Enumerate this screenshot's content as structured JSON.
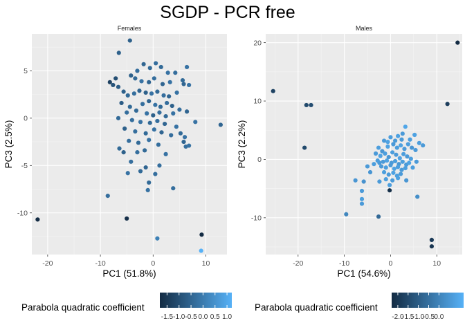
{
  "title": "SGDP - PCR free",
  "colors": {
    "panel_bg": "#ebebeb",
    "grid_major": "#ffffff",
    "grid_minor": "#f5f5f5",
    "low": "#132b43",
    "high": "#56b1f7"
  },
  "chart_data": [
    {
      "type": "scatter",
      "facet": "Females",
      "xlabel": "PC1 (51.8%)",
      "ylabel": "PC3 (2.5%)",
      "xlim": [
        -23,
        14
      ],
      "ylim": [
        -14.4,
        8.9
      ],
      "x_ticks": [
        -20,
        -10,
        0,
        10
      ],
      "y_ticks": [
        -10,
        -5,
        0,
        5
      ],
      "x_tick_labels": [
        "-20",
        "-10",
        "0",
        "10"
      ],
      "y_tick_labels": [
        "-10",
        "-5",
        "0",
        "5"
      ],
      "grid": true,
      "legend": {
        "title": "Parabola quadratic coefficient",
        "position": "bottom",
        "range": [
          -1.8,
          1.2
        ],
        "breaks": [
          -1.5,
          -1.0,
          -0.5,
          0.0,
          0.5,
          1.0
        ],
        "break_labels": [
          "-1.5",
          "-1.0",
          "-0.5",
          "0.0",
          "0.5",
          "1.0"
        ]
      },
      "points": [
        {
          "x": -21.9,
          "y": -10.7,
          "c": -1.8
        },
        {
          "x": -5.0,
          "y": -10.6,
          "c": -1.7
        },
        {
          "x": 9.2,
          "y": -12.3,
          "c": -1.8
        },
        {
          "x": 9.1,
          "y": -14.0,
          "c": 1.2
        },
        {
          "x": 0.8,
          "y": -12.7,
          "c": 0.1
        },
        {
          "x": -8.6,
          "y": -8.2,
          "c": -0.3
        },
        {
          "x": -4.4,
          "y": 8.2,
          "c": -0.6
        },
        {
          "x": -6.5,
          "y": 6.9,
          "c": -0.6
        },
        {
          "x": -7.1,
          "y": 4.2,
          "c": -1.0
        },
        {
          "x": -8.2,
          "y": 3.8,
          "c": -1.3
        },
        {
          "x": -7.6,
          "y": 3.5,
          "c": -0.9
        },
        {
          "x": -6.6,
          "y": 3.3,
          "c": -0.7
        },
        {
          "x": -4.2,
          "y": 4.5,
          "c": -0.6
        },
        {
          "x": -3.0,
          "y": 5.0,
          "c": -0.3
        },
        {
          "x": -1.8,
          "y": 5.7,
          "c": -0.5
        },
        {
          "x": -0.6,
          "y": 5.3,
          "c": -0.4
        },
        {
          "x": 0.5,
          "y": 5.8,
          "c": -0.3
        },
        {
          "x": 1.5,
          "y": 5.4,
          "c": -0.4
        },
        {
          "x": 2.8,
          "y": 4.8,
          "c": -0.2
        },
        {
          "x": 4.2,
          "y": 4.8,
          "c": -0.3
        },
        {
          "x": 5.6,
          "y": 4.0,
          "c": -0.4
        },
        {
          "x": 6.4,
          "y": 5.4,
          "c": -0.2
        },
        {
          "x": 5.8,
          "y": 3.6,
          "c": -0.5
        },
        {
          "x": 6.8,
          "y": 3.5,
          "c": -0.2
        },
        {
          "x": -3.4,
          "y": 4.2,
          "c": -0.4
        },
        {
          "x": -2.2,
          "y": 3.9,
          "c": -0.2
        },
        {
          "x": -0.8,
          "y": 3.8,
          "c": -0.5
        },
        {
          "x": 0.2,
          "y": 4.2,
          "c": -0.3
        },
        {
          "x": 1.8,
          "y": 3.6,
          "c": -0.5
        },
        {
          "x": 3.2,
          "y": 3.8,
          "c": -0.2
        },
        {
          "x": -5.6,
          "y": 2.8,
          "c": -0.6
        },
        {
          "x": -4.8,
          "y": 2.4,
          "c": -0.4
        },
        {
          "x": -3.6,
          "y": 2.6,
          "c": -0.3
        },
        {
          "x": -2.6,
          "y": 2.9,
          "c": -0.5
        },
        {
          "x": -1.4,
          "y": 2.7,
          "c": -0.6
        },
        {
          "x": -0.3,
          "y": 2.6,
          "c": -0.2
        },
        {
          "x": 0.8,
          "y": 2.8,
          "c": -0.4
        },
        {
          "x": 2.0,
          "y": 2.4,
          "c": -0.3
        },
        {
          "x": 3.0,
          "y": 2.3,
          "c": -0.5
        },
        {
          "x": 4.5,
          "y": 2.7,
          "c": -0.2
        },
        {
          "x": -6.0,
          "y": 1.6,
          "c": -0.7
        },
        {
          "x": -4.4,
          "y": 1.2,
          "c": -0.4
        },
        {
          "x": -2.0,
          "y": 1.5,
          "c": -0.3
        },
        {
          "x": -0.8,
          "y": 1.8,
          "c": -0.5
        },
        {
          "x": 0.4,
          "y": 1.4,
          "c": -0.2
        },
        {
          "x": 1.4,
          "y": 1.2,
          "c": -0.4
        },
        {
          "x": 2.6,
          "y": 1.6,
          "c": -0.3
        },
        {
          "x": 3.6,
          "y": 1.3,
          "c": -0.6
        },
        {
          "x": -5.0,
          "y": 0.6,
          "c": -0.3
        },
        {
          "x": -3.2,
          "y": 0.8,
          "c": -0.4
        },
        {
          "x": -1.2,
          "y": 0.5,
          "c": -0.2
        },
        {
          "x": 0.0,
          "y": 0.3,
          "c": -0.6
        },
        {
          "x": 1.2,
          "y": 0.6,
          "c": -0.3
        },
        {
          "x": 2.4,
          "y": 0.2,
          "c": -0.4
        },
        {
          "x": 3.8,
          "y": 0.5,
          "c": -0.2
        },
        {
          "x": 5.0,
          "y": 0.9,
          "c": -0.3
        },
        {
          "x": 6.4,
          "y": 0.7,
          "c": -0.5
        },
        {
          "x": 8.0,
          "y": -0.4,
          "c": -0.2
        },
        {
          "x": 12.8,
          "y": -0.7,
          "c": -0.5
        },
        {
          "x": -6.6,
          "y": 0.0,
          "c": -0.4
        },
        {
          "x": -4.0,
          "y": -0.2,
          "c": -0.3
        },
        {
          "x": -2.4,
          "y": -0.4,
          "c": -0.2
        },
        {
          "x": -0.6,
          "y": -0.5,
          "c": -0.4
        },
        {
          "x": 0.8,
          "y": -0.3,
          "c": -0.3
        },
        {
          "x": 2.2,
          "y": -0.6,
          "c": -0.5
        },
        {
          "x": 4.4,
          "y": -0.9,
          "c": -0.2
        },
        {
          "x": -5.4,
          "y": -1.1,
          "c": -0.6
        },
        {
          "x": -3.4,
          "y": -1.4,
          "c": -0.3
        },
        {
          "x": -1.4,
          "y": -1.6,
          "c": -0.4
        },
        {
          "x": 0.2,
          "y": -1.2,
          "c": -0.2
        },
        {
          "x": 1.6,
          "y": -1.5,
          "c": -0.5
        },
        {
          "x": 3.4,
          "y": -1.8,
          "c": -0.3
        },
        {
          "x": 5.2,
          "y": -1.6,
          "c": -0.4
        },
        {
          "x": 6.0,
          "y": -2.0,
          "c": -0.2
        },
        {
          "x": -4.6,
          "y": -2.4,
          "c": -0.3
        },
        {
          "x": -2.8,
          "y": -2.6,
          "c": -0.4
        },
        {
          "x": -0.8,
          "y": -2.3,
          "c": -0.2
        },
        {
          "x": 1.0,
          "y": -2.8,
          "c": -0.3
        },
        {
          "x": 5.8,
          "y": -2.5,
          "c": -0.5
        },
        {
          "x": 6.2,
          "y": -3.0,
          "c": -0.3
        },
        {
          "x": 6.8,
          "y": -2.9,
          "c": -0.2
        },
        {
          "x": -6.4,
          "y": -3.2,
          "c": -0.4
        },
        {
          "x": -5.6,
          "y": -3.6,
          "c": -0.6
        },
        {
          "x": -3.0,
          "y": -3.6,
          "c": -0.3
        },
        {
          "x": -1.6,
          "y": -3.4,
          "c": -0.4
        },
        {
          "x": 2.4,
          "y": -3.8,
          "c": -0.2
        },
        {
          "x": -4.2,
          "y": -4.6,
          "c": -0.3
        },
        {
          "x": -1.4,
          "y": -5.2,
          "c": -0.5
        },
        {
          "x": 1.2,
          "y": -5.0,
          "c": -0.3
        },
        {
          "x": -4.8,
          "y": -5.8,
          "c": -0.2
        },
        {
          "x": -2.4,
          "y": -5.6,
          "c": -0.4
        },
        {
          "x": 0.4,
          "y": -5.9,
          "c": -0.3
        },
        {
          "x": -0.8,
          "y": -6.8,
          "c": -0.4
        },
        {
          "x": -1.0,
          "y": -7.6,
          "c": -0.2
        },
        {
          "x": 3.8,
          "y": -7.4,
          "c": -0.3
        }
      ]
    },
    {
      "type": "scatter",
      "facet": "Males",
      "xlabel": "PC1 (54.6%)",
      "ylabel": "PC3 (2.2%)",
      "xlim": [
        -27,
        15.5
      ],
      "ylim": [
        -16.3,
        21.5
      ],
      "x_ticks": [
        -20,
        -10,
        0,
        10
      ],
      "y_ticks": [
        -10,
        0,
        10,
        20
      ],
      "x_tick_labels": [
        "-20",
        "-10",
        "0",
        "10"
      ],
      "y_tick_labels": [
        "-10",
        "0",
        "10",
        "20"
      ],
      "grid": true,
      "legend": {
        "title": "Parabola quadratic coefficient",
        "position": "bottom",
        "range": [
          -2.3,
          1.2
        ],
        "breaks": [
          -2.0,
          -1.5,
          -1.0,
          -0.5,
          0.0
        ],
        "break_labels": [
          "-2.0",
          "-1.5",
          "-1.0",
          "-0.5",
          "0.0"
        ]
      },
      "points": [
        {
          "x": 14.5,
          "y": 20.0,
          "c": -2.3
        },
        {
          "x": -25.4,
          "y": 11.7,
          "c": -1.7
        },
        {
          "x": -18.2,
          "y": 9.3,
          "c": -1.5
        },
        {
          "x": -17.2,
          "y": 9.3,
          "c": -1.4
        },
        {
          "x": 12.3,
          "y": 9.5,
          "c": -1.8
        },
        {
          "x": -18.6,
          "y": 2.0,
          "c": -1.5
        },
        {
          "x": 8.9,
          "y": -13.8,
          "c": -1.9
        },
        {
          "x": 8.9,
          "y": -14.9,
          "c": -2.0
        },
        {
          "x": -0.2,
          "y": -5.3,
          "c": -2.2
        },
        {
          "x": -2.6,
          "y": -9.8,
          "c": -0.7
        },
        {
          "x": -9.6,
          "y": -9.4,
          "c": 0.1
        },
        {
          "x": -6.2,
          "y": -5.4,
          "c": 0.6
        },
        {
          "x": -6.2,
          "y": -6.8,
          "c": 0.7
        },
        {
          "x": -6.2,
          "y": -7.6,
          "c": 0.6
        },
        {
          "x": -5.8,
          "y": -3.8,
          "c": 0.4
        },
        {
          "x": -7.6,
          "y": -3.6,
          "c": 0.5
        },
        {
          "x": -4.4,
          "y": -2.2,
          "c": 0.5
        },
        {
          "x": -5.0,
          "y": -1.2,
          "c": 0.6
        },
        {
          "x": -3.6,
          "y": -0.8,
          "c": 0.7
        },
        {
          "x": -2.4,
          "y": -0.6,
          "c": 0.6
        },
        {
          "x": 5.8,
          "y": -6.4,
          "c": 0.3
        },
        {
          "x": 3.4,
          "y": -3.6,
          "c": 0.5
        },
        {
          "x": 3.2,
          "y": 5.6,
          "c": 0.9
        },
        {
          "x": 6.2,
          "y": 2.8,
          "c": 0.7
        },
        {
          "x": 7.0,
          "y": 2.4,
          "c": 0.6
        },
        {
          "x": 5.2,
          "y": 4.2,
          "c": 0.8
        },
        {
          "x": -1.4,
          "y": 3.2,
          "c": 0.6
        },
        {
          "x": 0.0,
          "y": 3.8,
          "c": 0.7
        },
        {
          "x": 1.6,
          "y": 4.0,
          "c": 0.8
        },
        {
          "x": 2.4,
          "y": 3.4,
          "c": 0.6
        },
        {
          "x": -2.6,
          "y": 2.0,
          "c": 0.7
        },
        {
          "x": -1.8,
          "y": 1.4,
          "c": 0.5
        },
        {
          "x": -0.6,
          "y": 2.2,
          "c": 0.8
        },
        {
          "x": 0.6,
          "y": 2.6,
          "c": 0.6
        },
        {
          "x": 1.4,
          "y": 2.0,
          "c": 0.7
        },
        {
          "x": 2.2,
          "y": 2.4,
          "c": 0.8
        },
        {
          "x": 3.0,
          "y": 1.8,
          "c": 0.6
        },
        {
          "x": 3.8,
          "y": 2.6,
          "c": 0.7
        },
        {
          "x": 4.6,
          "y": 2.0,
          "c": 0.5
        },
        {
          "x": 5.4,
          "y": 1.6,
          "c": 0.6
        },
        {
          "x": -3.2,
          "y": 1.0,
          "c": 0.6
        },
        {
          "x": -2.2,
          "y": 0.6,
          "c": 0.8
        },
        {
          "x": -1.2,
          "y": 1.0,
          "c": 0.7
        },
        {
          "x": -0.4,
          "y": 0.4,
          "c": 0.5
        },
        {
          "x": 0.4,
          "y": 1.2,
          "c": 0.7
        },
        {
          "x": 1.2,
          "y": 0.8,
          "c": 0.6
        },
        {
          "x": 2.0,
          "y": 0.2,
          "c": 0.8
        },
        {
          "x": 2.8,
          "y": 0.9,
          "c": 0.7
        },
        {
          "x": 3.6,
          "y": 0.5,
          "c": 0.6
        },
        {
          "x": 4.4,
          "y": 0.1,
          "c": 0.7
        },
        {
          "x": -2.8,
          "y": -0.2,
          "c": 0.7
        },
        {
          "x": -1.6,
          "y": -0.4,
          "c": 0.6
        },
        {
          "x": -0.8,
          "y": -0.2,
          "c": 0.8
        },
        {
          "x": 0.2,
          "y": -0.6,
          "c": 0.6
        },
        {
          "x": 1.0,
          "y": -0.3,
          "c": 0.7
        },
        {
          "x": 1.8,
          "y": -0.8,
          "c": 0.5
        },
        {
          "x": 2.6,
          "y": -0.4,
          "c": 0.7
        },
        {
          "x": 3.4,
          "y": -0.9,
          "c": 0.6
        },
        {
          "x": 4.0,
          "y": -0.6,
          "c": 0.8
        },
        {
          "x": -2.0,
          "y": -1.2,
          "c": 0.6
        },
        {
          "x": -1.0,
          "y": -1.4,
          "c": 0.7
        },
        {
          "x": 0.0,
          "y": -1.0,
          "c": 0.6
        },
        {
          "x": 0.8,
          "y": -1.6,
          "c": 0.8
        },
        {
          "x": 1.6,
          "y": -1.3,
          "c": 0.7
        },
        {
          "x": 2.4,
          "y": -1.8,
          "c": 0.6
        },
        {
          "x": 3.2,
          "y": -1.5,
          "c": 0.7
        },
        {
          "x": -1.4,
          "y": -2.2,
          "c": 0.7
        },
        {
          "x": -0.4,
          "y": -2.6,
          "c": 0.6
        },
        {
          "x": 0.6,
          "y": -2.3,
          "c": 0.8
        },
        {
          "x": 1.4,
          "y": -2.8,
          "c": 0.7
        },
        {
          "x": 2.2,
          "y": -2.5,
          "c": 0.6
        },
        {
          "x": -1.0,
          "y": -3.4,
          "c": 0.7
        },
        {
          "x": 0.4,
          "y": -3.6,
          "c": 0.6
        },
        {
          "x": 1.6,
          "y": -3.2,
          "c": 0.8
        },
        {
          "x": -2.4,
          "y": -3.8,
          "c": 0.6
        },
        {
          "x": -0.2,
          "y": -4.4,
          "c": 0.7
        },
        {
          "x": 4.8,
          "y": -1.4,
          "c": 0.7
        },
        {
          "x": 5.6,
          "y": -0.4,
          "c": 0.6
        },
        {
          "x": 4.2,
          "y": 3.4,
          "c": 0.7
        },
        {
          "x": 2.6,
          "y": 4.4,
          "c": 0.6
        },
        {
          "x": -0.6,
          "y": 3.0,
          "c": 0.8
        },
        {
          "x": 1.0,
          "y": 3.2,
          "c": 0.6
        }
      ]
    }
  ]
}
